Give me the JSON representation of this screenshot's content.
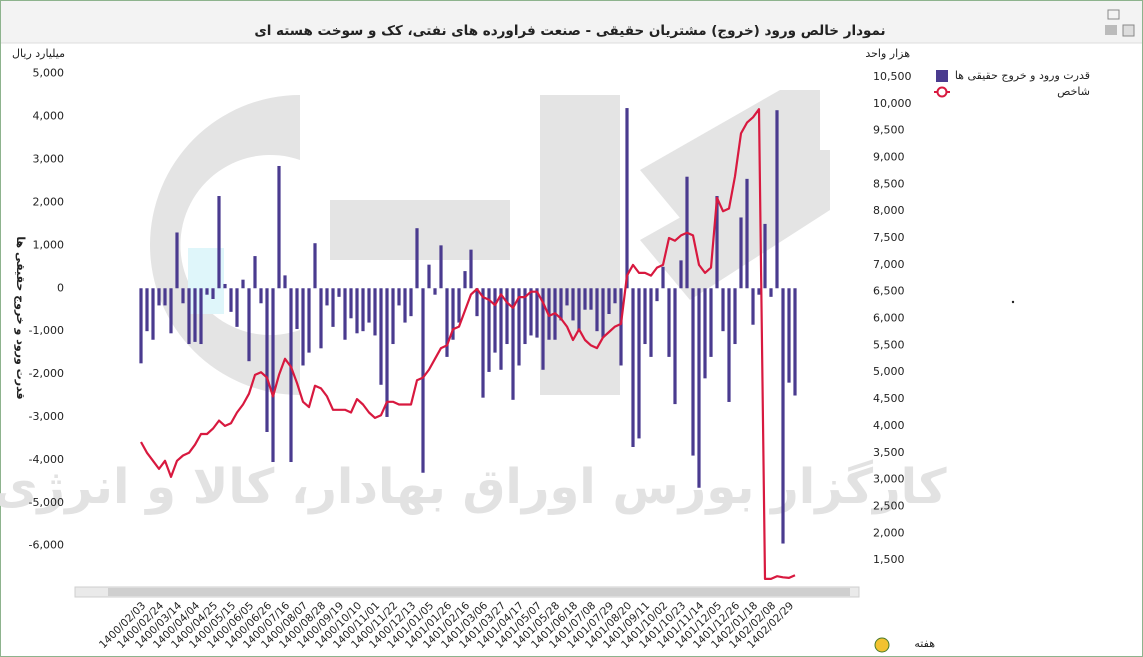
{
  "chart_data": {
    "type": "bar",
    "title": "نمودار خالص ورود (خروج) مشتریان حقیقی - صنعت فراورده های نفتی، کک و سوخت هسته ای",
    "y_unit": "میلیارد ریال",
    "y2_unit": "هزار واحد",
    "y_label": "قدرت ورود و خروج حقیقی ها",
    "x_label": "هفته",
    "watermark": "کارگزار بورس اوراق بهادار، کالا و انرژی",
    "ylim": [
      -6800,
      5600
    ],
    "yticks": [
      {
        "value": -6000,
        "label": "-6,000"
      },
      {
        "value": -5000,
        "label": "-5,000"
      },
      {
        "value": -4000,
        "label": "-4,000"
      },
      {
        "value": -3000,
        "label": "-3,000"
      },
      {
        "value": -2000,
        "label": "-2,000"
      },
      {
        "value": -1000,
        "label": "-1,000"
      },
      0,
      {
        "value": 1000,
        "label": "1,000"
      },
      {
        "value": 2000,
        "label": "2,000"
      },
      {
        "value": 3000,
        "label": "3,000"
      },
      {
        "value": 4000,
        "label": "4,000"
      },
      {
        "value": 5000,
        "label": "5,000"
      }
    ],
    "y2lim": [
      1130,
      11040
    ],
    "y2ticks": [
      {
        "value": 1500,
        "label": "1,500"
      },
      {
        "value": 2000,
        "label": "2,000"
      },
      {
        "value": 2500,
        "label": "2,500"
      },
      {
        "value": 3000,
        "label": "3,000"
      },
      {
        "value": 3500,
        "label": "3,500"
      },
      {
        "value": 4000,
        "label": "4,000"
      },
      {
        "value": 4500,
        "label": "4,500"
      },
      {
        "value": 5000,
        "label": "5,000"
      },
      {
        "value": 5500,
        "label": "5,500"
      },
      {
        "value": 6000,
        "label": "6,000"
      },
      {
        "value": 6500,
        "label": "6,500"
      },
      {
        "value": 7000,
        "label": "7,000"
      },
      {
        "value": 7500,
        "label": "7,500"
      },
      {
        "value": 8000,
        "label": "8,000"
      },
      {
        "value": 8500,
        "label": "8,500"
      },
      {
        "value": 9000,
        "label": "9,000"
      },
      {
        "value": 9500,
        "label": "9,500"
      },
      {
        "value": 10000,
        "label": "10,000"
      },
      {
        "value": 10500,
        "label": "10,500"
      }
    ],
    "grid": false,
    "legend": "top-right",
    "categories": [
      "1400/02/03",
      null,
      null,
      "1400/02/24",
      null,
      null,
      "1400/03/14",
      null,
      null,
      "1400/04/04",
      null,
      null,
      "1400/04/25",
      null,
      null,
      "1400/05/15",
      null,
      null,
      "1400/06/05",
      null,
      null,
      "1400/06/26",
      null,
      null,
      "1400/07/16",
      null,
      null,
      "1400/08/07",
      null,
      null,
      "1400/08/28",
      null,
      null,
      "1400/09/19",
      null,
      null,
      "1400/10/10",
      null,
      null,
      "1400/11/01",
      null,
      null,
      "1400/11/22",
      null,
      null,
      "1400/12/13",
      null,
      null,
      "1401/01/05",
      null,
      null,
      "1401/01/26",
      null,
      null,
      "1401/02/16",
      null,
      null,
      "1401/03/06",
      null,
      null,
      "1401/03/27",
      null,
      null,
      "1401/04/17",
      null,
      null,
      "1401/05/07",
      null,
      null,
      "1401/05/28",
      null,
      null,
      "1401/06/18",
      null,
      null,
      "1401/07/08",
      null,
      null,
      "1401/07/29",
      null,
      null,
      "1401/08/20",
      null,
      null,
      "1401/09/11",
      null,
      null,
      "1401/10/02",
      null,
      null,
      "1401/10/23",
      null,
      null,
      "1401/11/14",
      null,
      null,
      "1401/12/05",
      null,
      null,
      "1401/12/26",
      null,
      null,
      "1402/01/18",
      null,
      null,
      "1402/02/08",
      null,
      null,
      "1402/02/29",
      null
    ],
    "series": [
      {
        "name": "قدرت ورود و خروج حقیقی ها",
        "type": "bar",
        "axis": "y",
        "color": "#4a3b8f",
        "values": [
          -1750,
          -1000,
          -1200,
          -400,
          -400,
          -1050,
          1300,
          -350,
          -1300,
          -1250,
          -1300,
          -150,
          -250,
          2150,
          100,
          -550,
          -900,
          200,
          -1700,
          750,
          -350,
          -3350,
          -4050,
          2850,
          300,
          -4050,
          -950,
          -1800,
          -1500,
          1050,
          -1400,
          -400,
          -900,
          -200,
          -1200,
          -700,
          -1050,
          -1000,
          -800,
          -1100,
          -2250,
          -3000,
          -1300,
          -400,
          -800,
          -650,
          1400,
          -4300,
          550,
          -150,
          1000,
          -1600,
          -1200,
          -800,
          400,
          900,
          -650,
          -2550,
          -1950,
          -1500,
          -1900,
          -1300,
          -2600,
          -1800,
          -1300,
          -1100,
          -1150,
          -1900,
          -1200,
          -1200,
          -750,
          -400,
          -750,
          -1000,
          -500,
          -500,
          -1000,
          -1150,
          -600,
          -350,
          -1800,
          4200,
          -3700,
          -3500,
          -1300,
          -1600,
          -300,
          500,
          -1600,
          -2700,
          650,
          2600,
          -3900,
          -4650,
          -2100,
          -1600,
          2150,
          -1000,
          -2650,
          -1300,
          1650,
          2550,
          -850,
          -150,
          1500,
          -200,
          4150,
          -5950,
          -2200,
          -2500
        ]
      },
      {
        "name": "شاخص",
        "type": "line",
        "axis": "y2",
        "color": "#d8193f",
        "values": [
          3700,
          3500,
          3350,
          3200,
          3350,
          3050,
          3350,
          3450,
          3500,
          3650,
          3850,
          3850,
          3950,
          4100,
          4000,
          4050,
          4250,
          4400,
          4600,
          4950,
          5000,
          4900,
          4550,
          4950,
          5250,
          5100,
          4800,
          4450,
          4350,
          4750,
          4700,
          4550,
          4300,
          4300,
          4300,
          4250,
          4500,
          4400,
          4250,
          4150,
          4200,
          4450,
          4450,
          4400,
          4400,
          4400,
          4850,
          4900,
          5050,
          5250,
          5450,
          5500,
          5800,
          5850,
          6150,
          6450,
          6550,
          6400,
          6350,
          6250,
          6450,
          6300,
          6200,
          6400,
          6400,
          6500,
          6500,
          6300,
          6050,
          6100,
          6000,
          5850,
          5600,
          5800,
          5600,
          5500,
          5450,
          5650,
          5750,
          5850,
          5900,
          6800,
          7000,
          6850,
          6850,
          6800,
          6950,
          7000,
          7500,
          7450,
          7550,
          7600,
          7550,
          7000,
          6850,
          6950,
          8250,
          8000,
          8050,
          8650,
          9450,
          9650,
          9750,
          9900,
          1150,
          1150,
          1200,
          1180,
          1170,
          1220
        ]
      }
    ]
  }
}
